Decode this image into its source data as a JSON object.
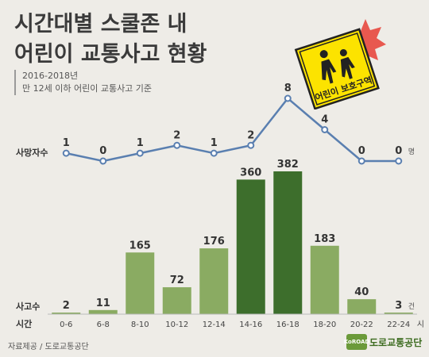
{
  "title_line1": "시간대별 스쿨존 내",
  "title_line2": "어린이 교통사고 현황",
  "subtitle_line1": "2016-2018년",
  "subtitle_line2": "만 12세 이하 어린이 교통사고 기준",
  "sign_text": "어린이 보호구역",
  "source": "자료제공 / 도로교통공단",
  "logo_small": "KoROAD",
  "logo_text": "도로교통공단",
  "colors": {
    "line": "#5a7fb0",
    "bar_light": "#8aab62",
    "bar_dark": "#3d6e2c",
    "sign_yellow": "#fce300",
    "burst": "#e8584f"
  },
  "chart_data": {
    "type": "bar+line",
    "categories": [
      "0-6",
      "6-8",
      "8-10",
      "10-12",
      "12-14",
      "14-16",
      "16-18",
      "18-20",
      "20-22",
      "22-24"
    ],
    "category_suffix_last": "시",
    "xlabel": "시간",
    "bars": {
      "label": "사고수",
      "unit": "건",
      "values": [
        2,
        11,
        165,
        72,
        176,
        360,
        382,
        183,
        40,
        3
      ],
      "highlight": [
        5,
        6
      ]
    },
    "line": {
      "label": "사망자수",
      "unit": "명",
      "values": [
        1,
        0,
        1,
        2,
        1,
        2,
        8,
        4,
        0,
        0
      ]
    }
  }
}
